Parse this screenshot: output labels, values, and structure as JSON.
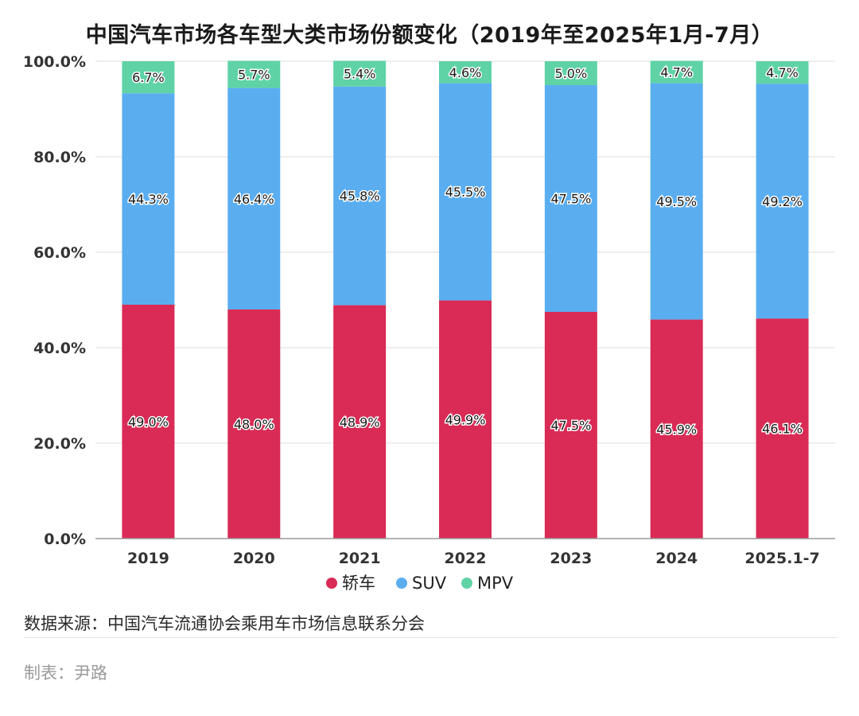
{
  "chart_data": {
    "type": "bar",
    "stacked": true,
    "title": "中国汽车市场各车型大类市场份额变化（2019年至2025年1月-7月）",
    "categories": [
      "2019",
      "2020",
      "2021",
      "2022",
      "2023",
      "2024",
      "2025.1-7"
    ],
    "series": [
      {
        "name": "轿车",
        "color": "#d92b55",
        "values": [
          49.0,
          48.0,
          48.9,
          49.9,
          47.5,
          45.9,
          46.1
        ]
      },
      {
        "name": "SUV",
        "color": "#5aaef0",
        "values": [
          44.3,
          46.4,
          45.8,
          45.5,
          47.5,
          49.5,
          49.2
        ]
      },
      {
        "name": "MPV",
        "color": "#5fd3a6",
        "values": [
          6.7,
          5.7,
          5.4,
          4.6,
          5.0,
          4.7,
          4.7
        ]
      }
    ],
    "ylim": [
      0,
      100
    ],
    "yticks": [
      "0.0%",
      "20.0%",
      "40.0%",
      "60.0%",
      "80.0%",
      "100.0%"
    ],
    "grid": true,
    "legend_position": "bottom"
  },
  "footer": {
    "source": "数据来源：中国汽车流通协会乘用车市场信息联系分会",
    "author": "制表：尹路"
  }
}
